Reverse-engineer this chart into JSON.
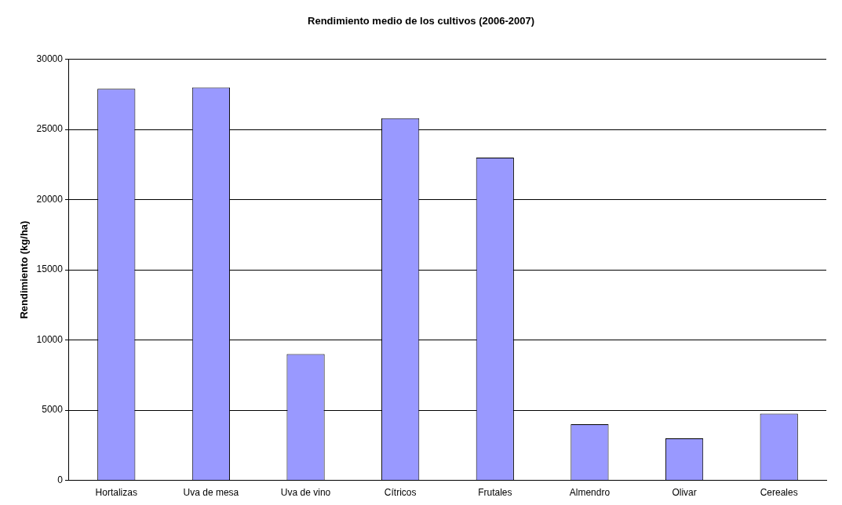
{
  "chart_data": {
    "type": "bar",
    "title": "Rendimiento medio de los cultivos (2006-2007)",
    "ylabel": "Rendimiento (kg/ha)",
    "categories": [
      "Hortalizas",
      "Uva de mesa",
      "Uva de vino",
      "Cítricos",
      "Frutales",
      "Almendro",
      "Olivar",
      "Cereales"
    ],
    "values": [
      27900,
      28000,
      9000,
      25800,
      23000,
      4000,
      3000,
      4750
    ],
    "color": "#9999ff",
    "ylim": [
      0,
      30000
    ],
    "yticks": [
      0,
      5000,
      10000,
      15000,
      20000,
      25000,
      30000
    ],
    "grid": "y",
    "legend": false
  }
}
